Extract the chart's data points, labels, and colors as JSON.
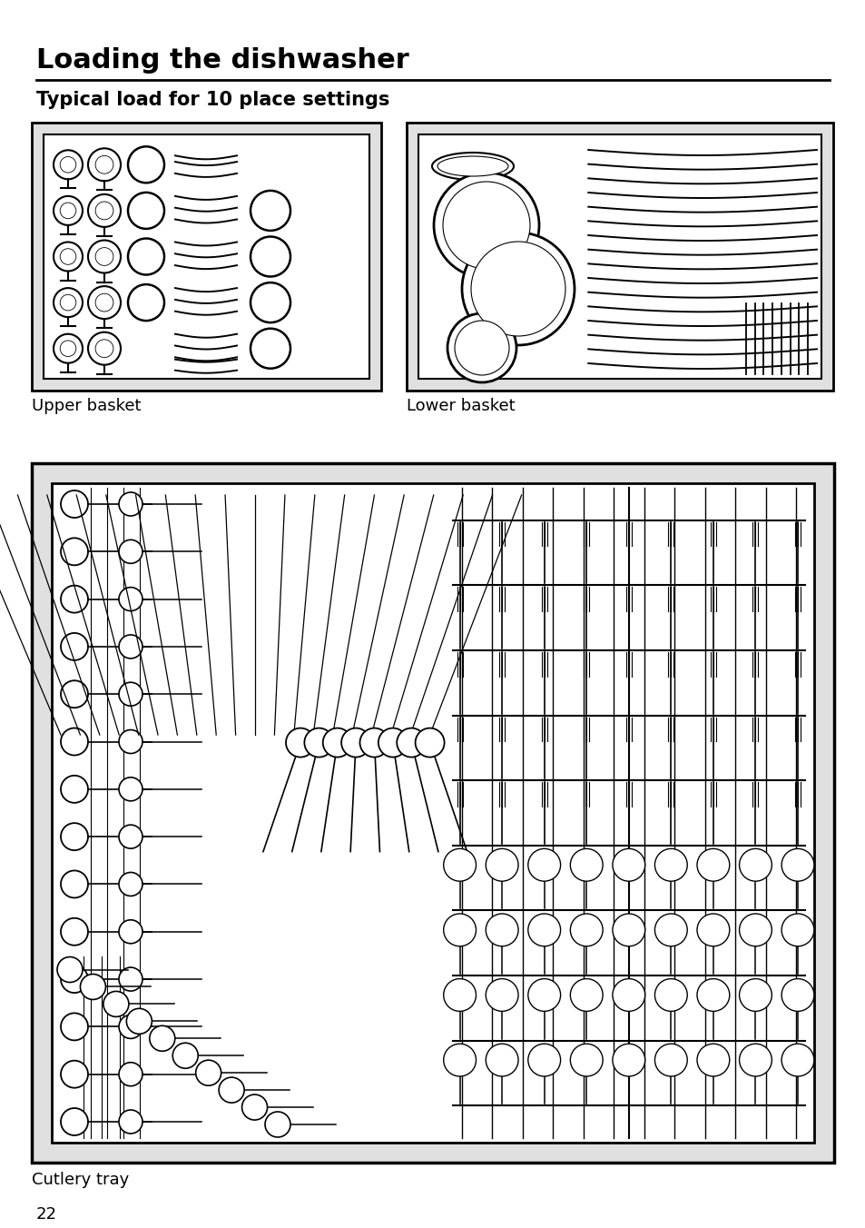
{
  "title": "Loading the dishwasher",
  "subtitle": "Typical load for 10 place settings",
  "upper_basket_label": "Upper basket",
  "lower_basket_label": "Lower basket",
  "cutlery_tray_label": "Cutlery tray",
  "page_number": "22",
  "bg_color": "#ffffff",
  "gray_light": "#e0e0e0",
  "gray_inner": "#f5f5f5",
  "line_color": "#000000"
}
